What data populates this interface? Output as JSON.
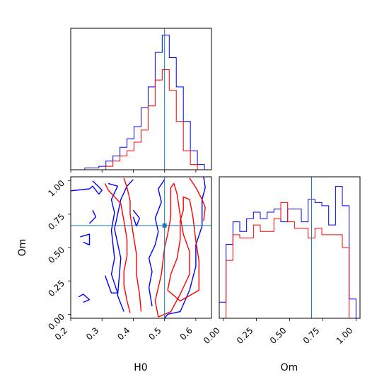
{
  "chart_data": {
    "type": "corner",
    "parameters": [
      "H0",
      "Om"
    ],
    "truths": {
      "H0": 0.5,
      "Om": 0.665
    },
    "series": [
      {
        "color": "#0000ff"
      },
      {
        "color": "#ff0000"
      }
    ],
    "truth_color": "#1f77b4",
    "axis_labels": {
      "x_bottom_left": "H0",
      "x_bottom_right": "Om",
      "y_left": "Om"
    },
    "axes": {
      "H0": {
        "lim": [
          0.2,
          0.65
        ],
        "ticks": [
          "0.2",
          "0.3",
          "0.4",
          "0.5",
          "0.6"
        ]
      },
      "Om": {
        "lim": [
          -0.03,
          1.03
        ],
        "ticks": [
          "0.00",
          "0.25",
          "0.50",
          "0.75",
          "1.00"
        ]
      }
    },
    "hist_H0": {
      "x_edges": [
        0.2,
        0.2225,
        0.245,
        0.2675,
        0.29,
        0.3125,
        0.335,
        0.3575,
        0.38,
        0.4025,
        0.425,
        0.4475,
        0.47,
        0.4925,
        0.515,
        0.5375,
        0.56,
        0.5825,
        0.605,
        0.6275,
        0.65
      ],
      "blue": [
        0,
        0,
        1,
        1,
        2,
        5,
        8,
        13,
        18,
        25,
        36,
        48,
        68,
        78,
        65,
        48,
        28,
        11,
        3,
        0
      ],
      "red": [
        0,
        0,
        0,
        0,
        0,
        2,
        5,
        8,
        11,
        16,
        23,
        37,
        52,
        58,
        46,
        28,
        11,
        3,
        0,
        0
      ],
      "ymax": 82
    },
    "hist_Om": {
      "x_edges": [
        -0.03,
        0.0215,
        0.073,
        0.1245,
        0.176,
        0.2275,
        0.279,
        0.3305,
        0.382,
        0.4335,
        0.485,
        0.5365,
        0.588,
        0.6395,
        0.691,
        0.7425,
        0.794,
        0.8455,
        0.897,
        0.9485,
        1.0
      ],
      "blue": [
        5,
        23,
        30,
        27,
        31,
        33,
        31,
        33,
        34,
        30,
        34,
        34,
        30,
        37,
        36,
        35,
        29,
        41,
        35,
        6
      ],
      "red": [
        0,
        18,
        26,
        25,
        25,
        29,
        27,
        27,
        31,
        36,
        30,
        28,
        28,
        25,
        28,
        26,
        26,
        26,
        22,
        0
      ],
      "ymax": 44
    },
    "contours": {
      "blue": [
        [
          [
            0.225,
            0.13
          ],
          [
            0.24,
            0.15
          ],
          [
            0.26,
            0.11
          ],
          [
            0.24,
            0.09
          ]
        ],
        [
          [
            0.23,
            0.58
          ],
          [
            0.26,
            0.6
          ],
          [
            0.26,
            0.52
          ],
          [
            0.24,
            0.54
          ]
        ],
        [
          [
            0.26,
            0.68
          ],
          [
            0.28,
            0.73
          ],
          [
            0.27,
            0.78
          ]
        ],
        [
          [
            0.31,
            0.29
          ],
          [
            0.33,
            0.16
          ],
          [
            0.35,
            0.16
          ],
          [
            0.33,
            0.3
          ],
          [
            0.34,
            0.42
          ],
          [
            0.33,
            0.63
          ],
          [
            0.34,
            0.76
          ],
          [
            0.33,
            0.86
          ],
          [
            0.35,
            0.96
          ],
          [
            0.32,
            0.98
          ]
        ],
        [
          [
            0.37,
            0.02
          ],
          [
            0.35,
            0.14
          ],
          [
            0.36,
            0.42
          ],
          [
            0.34,
            0.64
          ],
          [
            0.36,
            0.86
          ],
          [
            0.38,
            0.96
          ],
          [
            0.4,
            1.01
          ]
        ],
        [
          [
            0.4,
            0.73
          ],
          [
            0.41,
            0.66
          ],
          [
            0.42,
            0.72
          ],
          [
            0.4,
            0.78
          ]
        ],
        [
          [
            0.46,
            0.06
          ],
          [
            0.45,
            0.2
          ],
          [
            0.46,
            0.32
          ],
          [
            0.45,
            0.42
          ],
          [
            0.47,
            0.52
          ],
          [
            0.48,
            0.62
          ],
          [
            0.47,
            0.72
          ],
          [
            0.49,
            0.84
          ],
          [
            0.48,
            0.94
          ],
          [
            0.5,
            1.01
          ]
        ],
        [
          [
            0.5,
            -0.03
          ],
          [
            0.51,
            0.0
          ],
          [
            0.55,
            0.02
          ],
          [
            0.58,
            0.18
          ],
          [
            0.6,
            0.36
          ],
          [
            0.6,
            0.52
          ],
          [
            0.62,
            0.66
          ],
          [
            0.62,
            0.86
          ],
          [
            0.63,
            0.95
          ],
          [
            0.625,
            1.03
          ]
        ],
        [
          [
            0.18,
            0.92
          ],
          [
            0.26,
            0.94
          ],
          [
            0.27,
            0.96
          ],
          [
            0.29,
            0.9
          ],
          [
            0.3,
            0.93
          ],
          [
            0.27,
            1.0
          ]
        ]
      ],
      "red": [
        [
          [
            0.31,
            0.98
          ],
          [
            0.32,
            0.93
          ],
          [
            0.36,
            0.83
          ],
          [
            0.37,
            0.7
          ],
          [
            0.38,
            0.56
          ],
          [
            0.38,
            0.44
          ],
          [
            0.37,
            0.32
          ],
          [
            0.37,
            0.22
          ],
          [
            0.38,
            0.1
          ],
          [
            0.39,
            0.01
          ]
        ],
        [
          [
            0.37,
            1.02
          ],
          [
            0.38,
            0.95
          ],
          [
            0.39,
            0.85
          ],
          [
            0.39,
            0.75
          ],
          [
            0.4,
            0.6
          ],
          [
            0.41,
            0.45
          ],
          [
            0.41,
            0.3
          ],
          [
            0.42,
            0.15
          ],
          [
            0.425,
            0.02
          ]
        ],
        [
          [
            0.48,
            -0.02
          ],
          [
            0.47,
            0.1
          ],
          [
            0.49,
            0.3
          ],
          [
            0.5,
            0.5
          ],
          [
            0.51,
            0.6
          ],
          [
            0.52,
            0.73
          ],
          [
            0.52,
            0.85
          ],
          [
            0.52,
            0.95
          ],
          [
            0.53,
            0.98
          ],
          [
            0.54,
            0.9
          ],
          [
            0.55,
            0.74
          ],
          [
            0.56,
            0.6
          ],
          [
            0.58,
            0.47
          ],
          [
            0.58,
            0.3
          ],
          [
            0.55,
            0.15
          ],
          [
            0.52,
            0.02
          ],
          [
            0.48,
            -0.02
          ]
        ],
        [
          [
            0.51,
            0.18
          ],
          [
            0.52,
            0.3
          ],
          [
            0.54,
            0.42
          ],
          [
            0.55,
            0.56
          ],
          [
            0.55,
            0.7
          ],
          [
            0.56,
            0.78
          ],
          [
            0.56,
            0.88
          ],
          [
            0.58,
            0.86
          ],
          [
            0.59,
            0.74
          ],
          [
            0.6,
            0.55
          ],
          [
            0.61,
            0.4
          ],
          [
            0.61,
            0.18
          ],
          [
            0.55,
            0.1
          ],
          [
            0.51,
            0.18
          ]
        ],
        [
          [
            0.58,
            1.02
          ],
          [
            0.6,
            0.95
          ],
          [
            0.62,
            0.86
          ],
          [
            0.63,
            0.8
          ],
          [
            0.625,
            0.7
          ]
        ]
      ],
      "marker": [
        0.5,
        0.665
      ]
    }
  }
}
